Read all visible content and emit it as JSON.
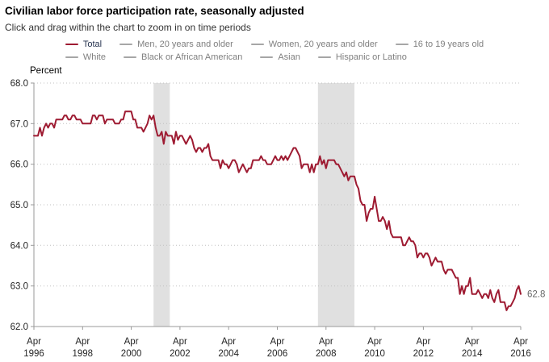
{
  "header": {
    "title": "Civilian labor force participation rate, seasonally adjusted",
    "subtitle": "Click and drag within the chart to zoom in on time periods"
  },
  "legend": {
    "rows": [
      [
        {
          "label": "Total",
          "line_color": "#9e1b32",
          "text_color": "#26334f",
          "active": true
        },
        {
          "label": "Men, 20 years and older",
          "line_color": "#a6a6a6",
          "text_color": "#7f7f7f",
          "active": false
        },
        {
          "label": "Women, 20 years and older",
          "line_color": "#a6a6a6",
          "text_color": "#7f7f7f",
          "active": false
        },
        {
          "label": "16 to 19 years old",
          "line_color": "#a6a6a6",
          "text_color": "#7f7f7f",
          "active": false
        }
      ],
      [
        {
          "label": "White",
          "line_color": "#a6a6a6",
          "text_color": "#7f7f7f",
          "active": false
        },
        {
          "label": "Black or African American",
          "line_color": "#a6a6a6",
          "text_color": "#7f7f7f",
          "active": false
        },
        {
          "label": "Asian",
          "line_color": "#a6a6a6",
          "text_color": "#7f7f7f",
          "active": false
        },
        {
          "label": "Hispanic or Latino",
          "line_color": "#a6a6a6",
          "text_color": "#7f7f7f",
          "active": false
        }
      ]
    ]
  },
  "chart_data": {
    "type": "line",
    "title": "Civilian labor force participation rate, seasonally adjusted",
    "ylabel": "Percent",
    "xlabel": "",
    "ylim": [
      62.0,
      68.0
    ],
    "y_ticks": [
      68.0,
      67.0,
      66.0,
      65.0,
      64.0,
      63.0,
      62.0
    ],
    "x_ticks": [
      "Apr 1996",
      "Apr 1998",
      "Apr 2000",
      "Apr 2002",
      "Apr 2004",
      "Apr 2006",
      "Apr 2008",
      "Apr 2010",
      "Apr 2012",
      "Apr 2014",
      "Apr 2016"
    ],
    "x_start": "1996-04",
    "x_end": "2016-04",
    "grid": "horizontal-dotted",
    "legend_position": "top-center",
    "last_value_label": "62.8",
    "recession_bands": [
      {
        "start": "2001-03",
        "end": "2001-11"
      },
      {
        "start": "2007-12",
        "end": "2009-06"
      }
    ],
    "series": [
      {
        "name": "Total",
        "color": "#9e1b32",
        "values": [
          66.7,
          66.7,
          66.7,
          66.9,
          66.7,
          66.9,
          67.0,
          66.9,
          67.0,
          67.0,
          66.9,
          67.1,
          67.1,
          67.1,
          67.1,
          67.2,
          67.2,
          67.1,
          67.1,
          67.2,
          67.2,
          67.1,
          67.1,
          67.1,
          67.0,
          67.0,
          67.0,
          67.0,
          67.0,
          67.2,
          67.2,
          67.1,
          67.2,
          67.2,
          67.2,
          67.0,
          67.1,
          67.1,
          67.1,
          67.1,
          67.0,
          67.0,
          67.0,
          67.1,
          67.1,
          67.3,
          67.3,
          67.3,
          67.3,
          67.1,
          67.1,
          66.9,
          66.9,
          66.9,
          66.8,
          66.9,
          67.0,
          67.2,
          67.1,
          67.2,
          66.9,
          66.7,
          66.7,
          66.8,
          66.5,
          66.8,
          66.7,
          66.7,
          66.7,
          66.5,
          66.8,
          66.6,
          66.7,
          66.7,
          66.6,
          66.5,
          66.6,
          66.7,
          66.6,
          66.4,
          66.3,
          66.4,
          66.4,
          66.3,
          66.4,
          66.4,
          66.5,
          66.2,
          66.1,
          66.1,
          66.1,
          66.1,
          65.9,
          66.1,
          66.0,
          66.0,
          65.9,
          66.0,
          66.1,
          66.1,
          66.0,
          65.8,
          65.9,
          66.0,
          65.9,
          65.8,
          65.9,
          65.9,
          66.1,
          66.1,
          66.1,
          66.1,
          66.2,
          66.1,
          66.1,
          66.0,
          66.0,
          66.0,
          66.1,
          66.2,
          66.1,
          66.1,
          66.2,
          66.1,
          66.2,
          66.1,
          66.2,
          66.3,
          66.4,
          66.4,
          66.3,
          66.2,
          65.9,
          66.0,
          66.0,
          66.0,
          65.8,
          66.0,
          65.8,
          66.0,
          66.0,
          66.2,
          66.0,
          66.1,
          65.9,
          66.1,
          66.1,
          66.1,
          66.1,
          66.0,
          66.0,
          65.9,
          65.8,
          65.7,
          65.8,
          65.6,
          65.7,
          65.7,
          65.7,
          65.5,
          65.4,
          65.1,
          65.0,
          65.0,
          64.6,
          64.8,
          64.9,
          64.9,
          65.2,
          64.9,
          64.6,
          64.6,
          64.7,
          64.6,
          64.4,
          64.6,
          64.3,
          64.2,
          64.2,
          64.2,
          64.2,
          64.2,
          64.0,
          64.0,
          64.1,
          64.2,
          64.1,
          64.1,
          64.0,
          63.7,
          63.8,
          63.8,
          63.7,
          63.8,
          63.8,
          63.7,
          63.5,
          63.6,
          63.7,
          63.6,
          63.6,
          63.6,
          63.4,
          63.3,
          63.4,
          63.4,
          63.4,
          63.3,
          63.2,
          63.2,
          62.8,
          63.0,
          62.8,
          63.0,
          63.0,
          63.2,
          62.8,
          62.8,
          62.8,
          62.9,
          62.8,
          62.7,
          62.8,
          62.8,
          62.7,
          62.9,
          62.7,
          62.6,
          62.8,
          62.9,
          62.6,
          62.6,
          62.6,
          62.4,
          62.5,
          62.5,
          62.6,
          62.7,
          62.9,
          63.0,
          62.8
        ]
      }
    ],
    "colors": {
      "line": "#9e1b32",
      "recession_band": "#e0e0e0",
      "gridline": "#c0c0c0",
      "axis": "#9a9a9a",
      "tick_label": "#262626",
      "end_label": "#666666"
    }
  }
}
